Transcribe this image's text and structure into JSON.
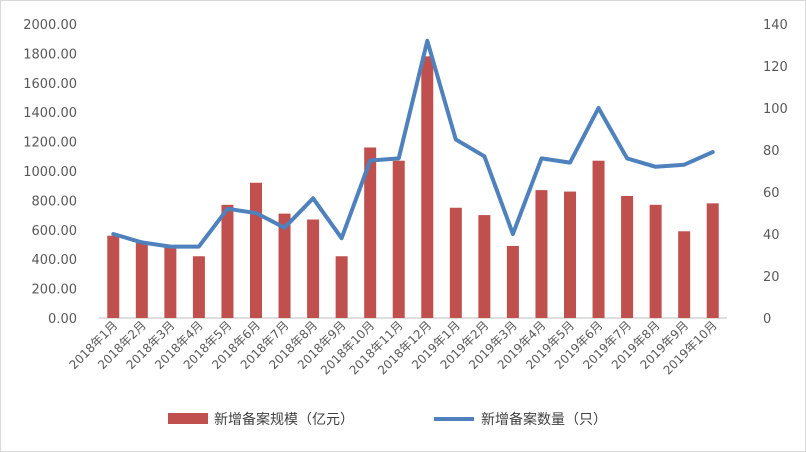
{
  "chart_data": {
    "type": "bar",
    "categories": [
      "2018年1月",
      "2018年2月",
      "2018年3月",
      "2018年4月",
      "2018年5月",
      "2018年6月",
      "2018年7月",
      "2018年8月",
      "2018年9月",
      "2018年10月",
      "2018年11月",
      "2018年12月",
      "2019年1月",
      "2019年2月",
      "2019年3月",
      "2019年4月",
      "2019年5月",
      "2019年6月",
      "2019年7月",
      "2019年8月",
      "2019年9月",
      "2019年10月"
    ],
    "series": [
      {
        "name": "新增备案规模（亿元）",
        "type": "bar",
        "axis": "left",
        "color": "#c0504d",
        "values": [
          560,
          510,
          480,
          420,
          770,
          920,
          710,
          670,
          420,
          1160,
          1070,
          1780,
          750,
          700,
          490,
          870,
          860,
          1070,
          830,
          770,
          590,
          780
        ]
      },
      {
        "name": "新增备案数量（只）",
        "type": "line",
        "axis": "right",
        "color": "#4f81bd",
        "values": [
          40,
          36,
          34,
          34,
          52,
          50,
          43,
          57,
          38,
          75,
          76,
          132,
          85,
          77,
          40,
          76,
          74,
          100,
          76,
          72,
          73,
          79
        ]
      }
    ],
    "y_left": {
      "min": 0,
      "max": 2000,
      "ticks": [
        "0.00",
        "200.00",
        "400.00",
        "600.00",
        "800.00",
        "1000.00",
        "1200.00",
        "1400.00",
        "1600.00",
        "1800.00",
        "2000.00"
      ]
    },
    "y_right": {
      "min": 0,
      "max": 140,
      "ticks": [
        "0",
        "20",
        "40",
        "60",
        "80",
        "100",
        "120",
        "140"
      ]
    },
    "legend_position": "bottom",
    "grid": false
  }
}
